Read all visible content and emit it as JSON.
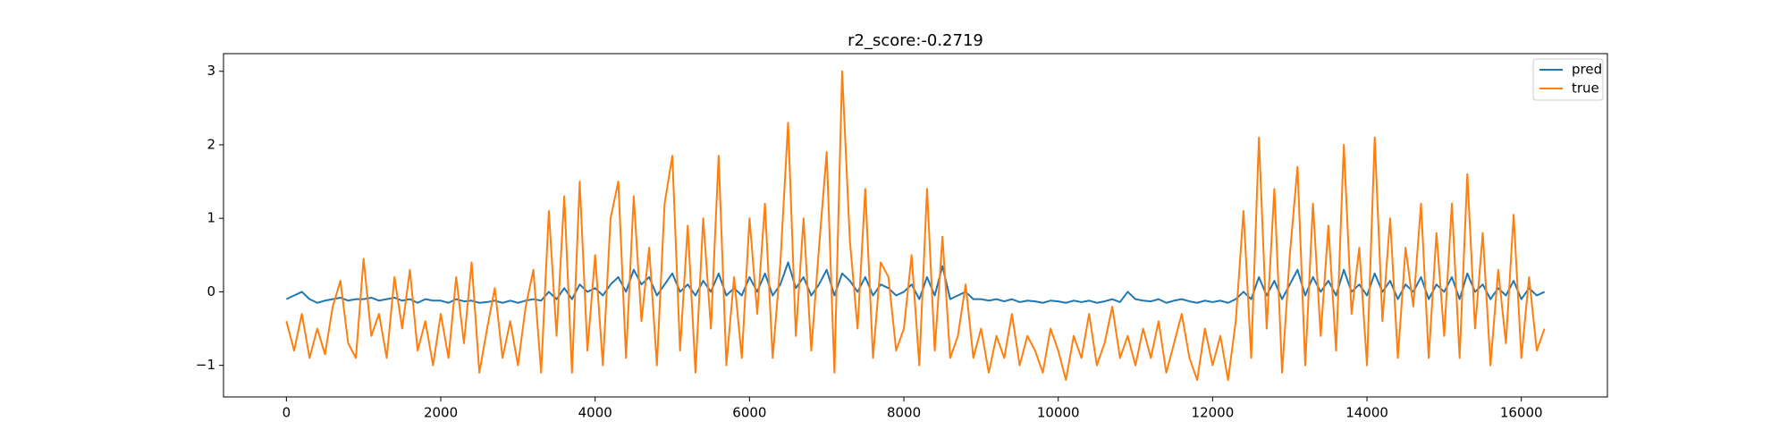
{
  "chart_data": {
    "type": "line",
    "title": "r2_score:-0.2719",
    "x": [
      0,
      100,
      200,
      300,
      400,
      500,
      600,
      700,
      800,
      900,
      1000,
      1100,
      1200,
      1300,
      1400,
      1500,
      1600,
      1700,
      1800,
      1900,
      2000,
      2100,
      2200,
      2300,
      2400,
      2500,
      2600,
      2700,
      2800,
      2900,
      3000,
      3100,
      3200,
      3300,
      3400,
      3500,
      3600,
      3700,
      3800,
      3900,
      4000,
      4100,
      4200,
      4300,
      4400,
      4500,
      4600,
      4700,
      4800,
      4900,
      5000,
      5100,
      5200,
      5300,
      5400,
      5500,
      5600,
      5700,
      5800,
      5900,
      6000,
      6100,
      6200,
      6300,
      6400,
      6500,
      6600,
      6700,
      6800,
      6900,
      7000,
      7100,
      7200,
      7300,
      7400,
      7500,
      7600,
      7700,
      7800,
      7900,
      8000,
      8100,
      8200,
      8300,
      8400,
      8500,
      8600,
      8700,
      8800,
      8900,
      9000,
      9100,
      9200,
      9300,
      9400,
      9500,
      9600,
      9700,
      9800,
      9900,
      10000,
      10100,
      10200,
      10300,
      10400,
      10500,
      10600,
      10700,
      10800,
      10900,
      11000,
      11100,
      11200,
      11300,
      11400,
      11500,
      11600,
      11700,
      11800,
      11900,
      12000,
      12100,
      12200,
      12300,
      12400,
      12500,
      12600,
      12700,
      12800,
      12900,
      13000,
      13100,
      13200,
      13300,
      13400,
      13500,
      13600,
      13700,
      13800,
      13900,
      14000,
      14100,
      14200,
      14300,
      14400,
      14500,
      14600,
      14700,
      14800,
      14900,
      15000,
      15100,
      15200,
      15300,
      15400,
      15500,
      15600,
      15700,
      15800,
      15900,
      16000,
      16100,
      16200,
      16300
    ],
    "series": [
      {
        "name": "pred",
        "color": "#1f77b4",
        "values": [
          -0.1,
          -0.05,
          0.0,
          -0.1,
          -0.15,
          -0.12,
          -0.1,
          -0.08,
          -0.12,
          -0.1,
          -0.1,
          -0.08,
          -0.12,
          -0.1,
          -0.08,
          -0.12,
          -0.1,
          -0.15,
          -0.1,
          -0.12,
          -0.12,
          -0.15,
          -0.1,
          -0.13,
          -0.12,
          -0.15,
          -0.14,
          -0.12,
          -0.15,
          -0.12,
          -0.15,
          -0.12,
          -0.1,
          -0.12,
          0.0,
          -0.1,
          0.05,
          -0.1,
          0.1,
          0.0,
          0.05,
          -0.05,
          0.1,
          0.2,
          0.0,
          0.3,
          0.1,
          0.2,
          -0.05,
          0.1,
          0.25,
          0.0,
          0.1,
          -0.05,
          0.15,
          0.0,
          0.25,
          -0.05,
          0.05,
          -0.05,
          0.2,
          0.0,
          0.25,
          -0.05,
          0.1,
          0.4,
          0.05,
          0.2,
          -0.05,
          0.1,
          0.3,
          -0.05,
          0.25,
          0.15,
          0.0,
          0.2,
          -0.05,
          0.1,
          0.05,
          -0.05,
          0.0,
          0.1,
          -0.1,
          0.2,
          -0.05,
          0.35,
          -0.1,
          -0.05,
          0.0,
          -0.1,
          -0.1,
          -0.12,
          -0.1,
          -0.13,
          -0.1,
          -0.14,
          -0.12,
          -0.13,
          -0.15,
          -0.12,
          -0.13,
          -0.15,
          -0.12,
          -0.14,
          -0.12,
          -0.15,
          -0.13,
          -0.1,
          -0.14,
          0.0,
          -0.1,
          -0.12,
          -0.13,
          -0.1,
          -0.15,
          -0.12,
          -0.1,
          -0.13,
          -0.15,
          -0.12,
          -0.14,
          -0.12,
          -0.15,
          -0.1,
          0.0,
          -0.1,
          0.2,
          -0.05,
          0.15,
          -0.1,
          0.1,
          0.3,
          -0.05,
          0.2,
          0.0,
          0.15,
          -0.05,
          0.3,
          0.0,
          0.1,
          -0.05,
          0.25,
          0.0,
          0.15,
          -0.1,
          0.1,
          0.0,
          0.2,
          -0.1,
          0.1,
          0.0,
          0.2,
          -0.1,
          0.25,
          0.0,
          0.1,
          -0.1,
          0.05,
          -0.05,
          0.15,
          -0.1,
          0.05,
          -0.05,
          0.0
        ]
      },
      {
        "name": "true",
        "color": "#ff7f0e",
        "values": [
          -0.4,
          -0.8,
          -0.3,
          -0.9,
          -0.5,
          -0.85,
          -0.2,
          0.15,
          -0.7,
          -0.9,
          0.45,
          -0.6,
          -0.3,
          -0.9,
          0.2,
          -0.5,
          0.3,
          -0.8,
          -0.4,
          -1.0,
          -0.3,
          -0.9,
          0.2,
          -0.7,
          0.4,
          -1.1,
          -0.5,
          0.05,
          -0.9,
          -0.4,
          -1.0,
          -0.2,
          0.3,
          -1.1,
          1.1,
          -0.6,
          1.3,
          -1.1,
          1.5,
          -0.8,
          0.5,
          -1.0,
          1.0,
          1.5,
          -0.9,
          1.3,
          -0.4,
          0.6,
          -1.0,
          1.2,
          1.85,
          -0.8,
          0.9,
          -1.1,
          1.0,
          -0.5,
          1.85,
          -1.0,
          0.2,
          -0.9,
          1.0,
          -0.3,
          1.2,
          -0.9,
          0.4,
          2.3,
          -0.6,
          1.0,
          -0.8,
          0.6,
          1.9,
          -1.1,
          3.0,
          0.7,
          -0.5,
          1.4,
          -0.9,
          0.4,
          0.2,
          -0.8,
          -0.5,
          0.5,
          -1.0,
          1.4,
          -0.8,
          0.75,
          -0.9,
          -0.6,
          0.1,
          -0.9,
          -0.5,
          -1.1,
          -0.6,
          -0.9,
          -0.3,
          -1.0,
          -0.6,
          -0.8,
          -1.1,
          -0.5,
          -0.8,
          -1.2,
          -0.6,
          -0.9,
          -0.3,
          -1.0,
          -0.7,
          -0.2,
          -0.9,
          -0.6,
          -1.0,
          -0.5,
          -0.9,
          -0.4,
          -1.1,
          -0.7,
          -0.3,
          -0.9,
          -1.2,
          -0.5,
          -1.0,
          -0.6,
          -1.2,
          -0.4,
          1.1,
          -0.9,
          2.1,
          -0.5,
          1.4,
          -1.1,
          0.5,
          1.7,
          -1.0,
          1.2,
          -0.6,
          0.9,
          -0.8,
          2.0,
          -0.3,
          0.6,
          -1.0,
          2.1,
          -0.4,
          1.0,
          -0.9,
          0.6,
          -0.2,
          1.2,
          -0.9,
          0.8,
          -0.6,
          1.2,
          -0.9,
          1.6,
          -0.5,
          0.8,
          -1.0,
          0.3,
          -0.7,
          1.05,
          -0.9,
          0.2,
          -0.8,
          -0.5
        ]
      }
    ],
    "xlim": [
      -815,
      17115
    ],
    "xticks": [
      0,
      2000,
      4000,
      6000,
      8000,
      10000,
      12000,
      14000,
      16000
    ],
    "ylim": [
      -1.43,
      3.24
    ],
    "yticks": [
      {
        "value": -1,
        "label": "−1"
      },
      0,
      1,
      2,
      3
    ],
    "legend": "upper right"
  }
}
